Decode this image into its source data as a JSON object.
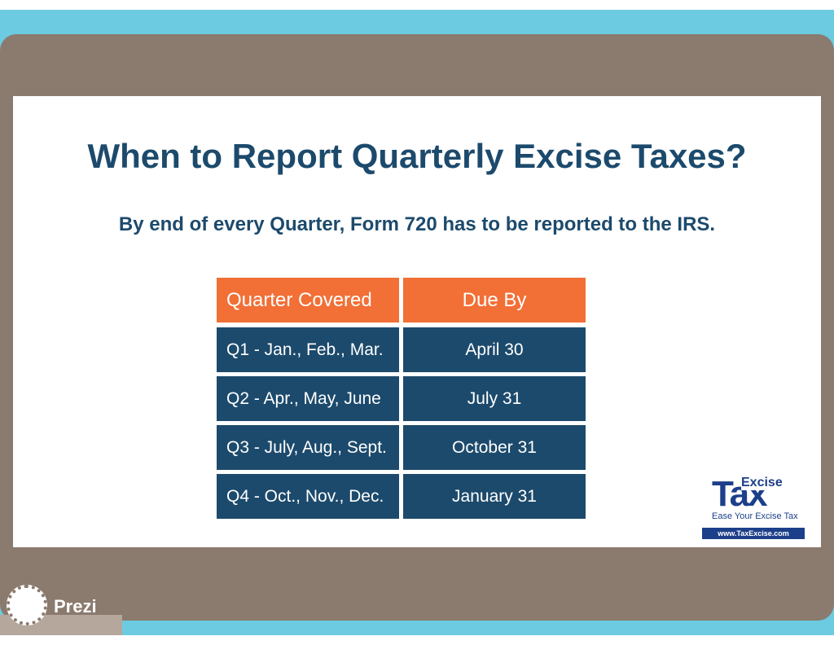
{
  "header": {
    "title": "When to Report Quarterly Excise Taxes?",
    "subtitle": "By end of every Quarter, Form 720 has to be reported to the IRS."
  },
  "table": {
    "columns": [
      "Quarter Covered",
      "Due By"
    ],
    "rows": [
      [
        "Q1 - Jan., Feb., Mar.",
        "April 30"
      ],
      [
        "Q2 - Apr., May, June",
        "July 31"
      ],
      [
        "Q3 - July, Aug., Sept.",
        "October 31"
      ],
      [
        "Q4 - Oct., Nov., Dec.",
        "January 31"
      ]
    ]
  },
  "logo": {
    "top": "Excise",
    "main": "Tax",
    "tagline": "Ease Your Excise Tax",
    "url": "www.TaxExcise.com"
  },
  "footer": {
    "brand": "Prezi"
  }
}
